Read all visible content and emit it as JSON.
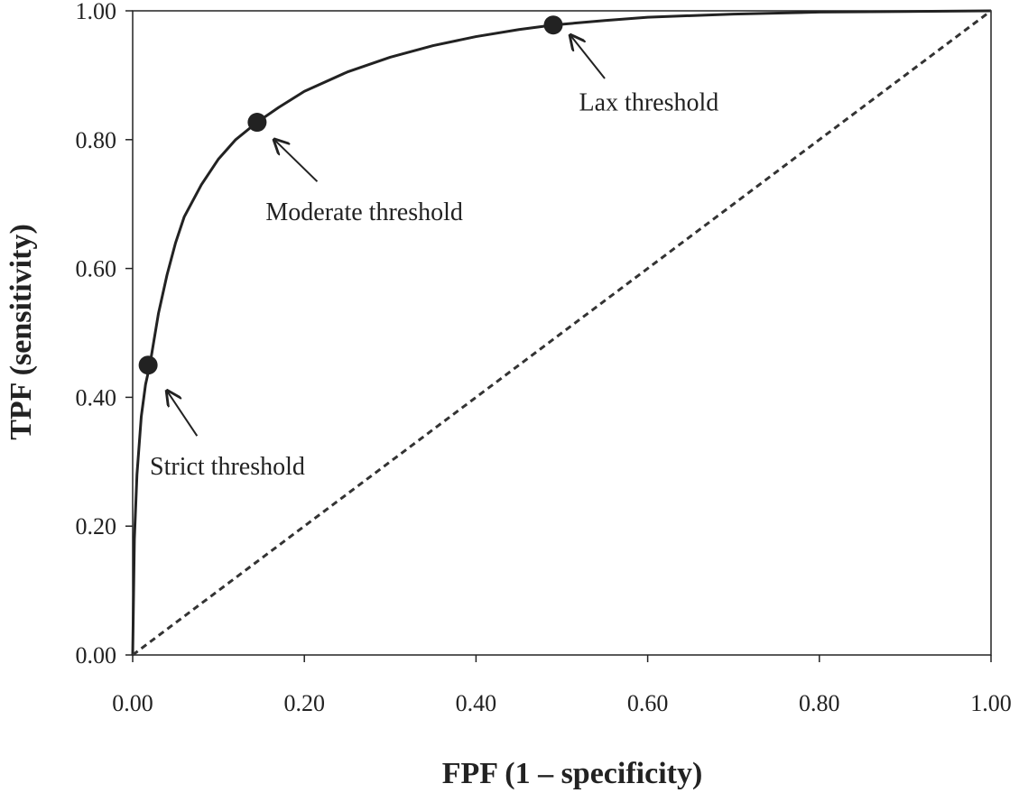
{
  "chart_data": {
    "type": "line",
    "title": "",
    "xlabel": "FPF (1 – specificity)",
    "ylabel": "TPF (sensitivity)",
    "xlim": [
      0,
      1
    ],
    "ylim": [
      0,
      1
    ],
    "x_ticks": [
      "0.00",
      "0.20",
      "0.40",
      "0.60",
      "0.80",
      "1.00"
    ],
    "y_ticks": [
      "0.00",
      "0.20",
      "0.40",
      "0.60",
      "0.80",
      "1.00"
    ],
    "grid": false,
    "legend": "none",
    "series": [
      {
        "style": "solid",
        "color": "#222222",
        "x": [
          0.0,
          0.002,
          0.005,
          0.01,
          0.015,
          0.02,
          0.03,
          0.04,
          0.05,
          0.06,
          0.08,
          0.1,
          0.12,
          0.145,
          0.17,
          0.2,
          0.25,
          0.3,
          0.35,
          0.4,
          0.45,
          0.49,
          0.55,
          0.6,
          0.7,
          0.8,
          0.9,
          1.0
        ],
        "y": [
          0.0,
          0.18,
          0.28,
          0.37,
          0.42,
          0.45,
          0.53,
          0.59,
          0.64,
          0.68,
          0.73,
          0.77,
          0.8,
          0.827,
          0.85,
          0.875,
          0.905,
          0.928,
          0.946,
          0.96,
          0.971,
          0.978,
          0.985,
          0.99,
          0.995,
          0.998,
          0.999,
          1.0
        ]
      },
      {
        "style": "dashed",
        "color": "#333333",
        "x": [
          0.0,
          1.0
        ],
        "y": [
          0.0,
          1.0
        ]
      }
    ],
    "points": [
      {
        "x": 0.018,
        "y": 0.45
      },
      {
        "x": 0.145,
        "y": 0.827
      },
      {
        "x": 0.49,
        "y": 0.978
      }
    ],
    "annotations": [
      {
        "text": "Strict threshold",
        "x": 0.02,
        "y": 0.28,
        "arrow_from": [
          0.075,
          0.34
        ],
        "arrow_to": [
          0.04,
          0.41
        ]
      },
      {
        "text": "Moderate threshold",
        "x": 0.155,
        "y": 0.675,
        "arrow_from": [
          0.215,
          0.735
        ],
        "arrow_to": [
          0.165,
          0.8
        ]
      },
      {
        "text": "Lax threshold",
        "x": 0.52,
        "y": 0.845,
        "arrow_from": [
          0.55,
          0.895
        ],
        "arrow_to": [
          0.51,
          0.962
        ]
      }
    ]
  }
}
